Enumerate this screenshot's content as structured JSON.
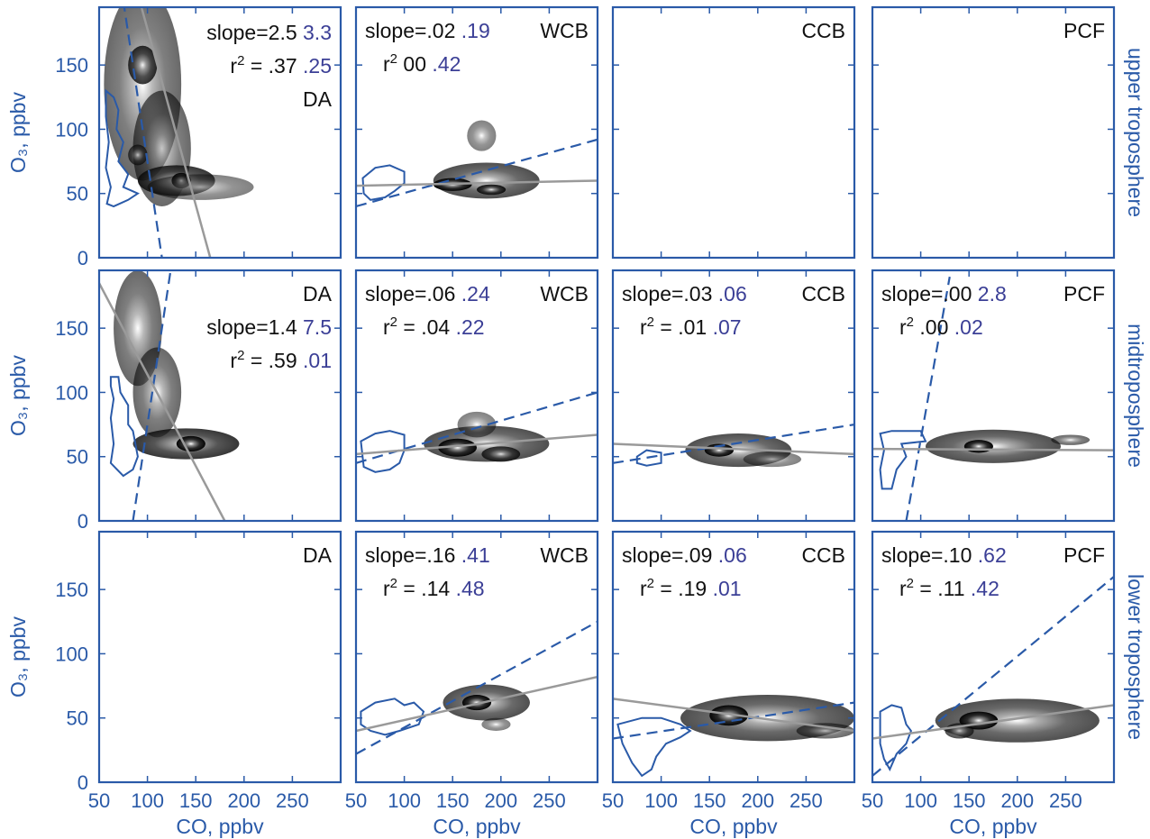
{
  "colors": {
    "axis": "#2a5aa8",
    "black_text": "#111111",
    "purple_text": "#3b3f96",
    "fit_line": "#9a9a9a",
    "contour": "#2a5aa8"
  },
  "chart_data": {
    "type": "scatter",
    "xlabel": "CO, ppbv",
    "ylabel": "O₃, ppbv",
    "xlim": [
      50,
      300
    ],
    "ylim": [
      0,
      195
    ],
    "xticks": [
      50,
      100,
      150,
      200,
      250
    ],
    "yticks": [
      0,
      50,
      100,
      150
    ],
    "row_labels": [
      "upper troposphere",
      "midtroposphere",
      "lower troposphere"
    ],
    "panels": [
      {
        "row": 0,
        "col": 0,
        "tag": "DA",
        "slope": [
          "slope=2.5",
          "3.3"
        ],
        "r2": [
          "= .37",
          ".25"
        ],
        "cloud": [
          [
            95,
            135,
            40,
            75,
            0.6
          ],
          [
            115,
            85,
            30,
            45,
            0.6
          ],
          [
            130,
            60,
            40,
            12,
            0.8
          ],
          [
            135,
            60,
            10,
            6,
            1.0
          ],
          [
            155,
            55,
            55,
            10,
            0.5
          ],
          [
            95,
            150,
            15,
            15,
            0.8
          ],
          [
            90,
            80,
            10,
            8,
            0.7
          ]
        ],
        "fit": [
          [
            50,
            315
          ],
          [
            165,
            0
          ]
        ],
        "dash": [
          [
            75,
            200
          ],
          [
            115,
            0
          ]
        ],
        "contour": [
          [
            57,
            130
          ],
          [
            65,
            125
          ],
          [
            70,
            115
          ],
          [
            68,
            100
          ],
          [
            75,
            90
          ],
          [
            70,
            75
          ],
          [
            80,
            65
          ],
          [
            75,
            55
          ],
          [
            90,
            50
          ],
          [
            80,
            45
          ],
          [
            65,
            40
          ],
          [
            58,
            42
          ],
          [
            62,
            55
          ],
          [
            57,
            70
          ],
          [
            60,
            90
          ],
          [
            57,
            110
          ]
        ]
      },
      {
        "row": 0,
        "col": 1,
        "tag": "WCB",
        "slope": [
          "slope=.02",
          ".19"
        ],
        "r2": [
          "00",
          ".42"
        ],
        "cloud": [
          [
            185,
            60,
            55,
            14,
            0.7
          ],
          [
            150,
            57,
            20,
            5,
            1.0
          ],
          [
            190,
            53,
            15,
            4,
            0.9
          ],
          [
            180,
            95,
            15,
            12,
            0.5
          ]
        ],
        "fit": [
          [
            50,
            56
          ],
          [
            300,
            60
          ]
        ],
        "dash": [
          [
            50,
            40
          ],
          [
            300,
            92
          ]
        ],
        "contour": [
          [
            57,
            62
          ],
          [
            70,
            70
          ],
          [
            85,
            72
          ],
          [
            100,
            67
          ],
          [
            100,
            58
          ],
          [
            90,
            52
          ],
          [
            80,
            47
          ],
          [
            65,
            45
          ],
          [
            58,
            50
          ]
        ]
      },
      {
        "row": 0,
        "col": 2,
        "tag": "CCB",
        "slope": null,
        "r2": null,
        "cloud": [],
        "fit": null,
        "dash": null,
        "contour": null
      },
      {
        "row": 0,
        "col": 3,
        "tag": "PCF",
        "slope": null,
        "r2": null,
        "cloud": [],
        "fit": null,
        "dash": null,
        "contour": null
      },
      {
        "row": 1,
        "col": 0,
        "tag": "DA",
        "slope": [
          "slope=1.4",
          "7.5"
        ],
        "r2": [
          "= .59",
          ".01"
        ],
        "cloud": [
          [
            90,
            150,
            25,
            45,
            0.6
          ],
          [
            110,
            100,
            25,
            35,
            0.6
          ],
          [
            140,
            60,
            55,
            12,
            0.8
          ],
          [
            145,
            60,
            15,
            6,
            1.0
          ]
        ],
        "fit": [
          [
            50,
            185
          ],
          [
            180,
            0
          ]
        ],
        "dash": [
          [
            85,
            0
          ],
          [
            125,
            200
          ]
        ],
        "contour": [
          [
            62,
            112
          ],
          [
            70,
            112
          ],
          [
            72,
            100
          ],
          [
            80,
            90
          ],
          [
            80,
            75
          ],
          [
            85,
            70
          ],
          [
            90,
            50
          ],
          [
            85,
            40
          ],
          [
            75,
            35
          ],
          [
            62,
            45
          ],
          [
            65,
            60
          ],
          [
            62,
            80
          ],
          [
            65,
            95
          ],
          [
            62,
            105
          ]
        ]
      },
      {
        "row": 1,
        "col": 1,
        "tag": "WCB",
        "slope": [
          "slope=.06",
          ".24"
        ],
        "r2": [
          "= .04",
          ".22"
        ],
        "cloud": [
          [
            185,
            60,
            65,
            14,
            0.7
          ],
          [
            155,
            57,
            20,
            7,
            1.0
          ],
          [
            200,
            52,
            20,
            6,
            0.8
          ],
          [
            175,
            75,
            20,
            10,
            0.5
          ]
        ],
        "fit": [
          [
            50,
            52
          ],
          [
            300,
            67
          ]
        ],
        "dash": [
          [
            50,
            45
          ],
          [
            300,
            100
          ]
        ],
        "contour": [
          [
            55,
            62
          ],
          [
            70,
            68
          ],
          [
            85,
            70
          ],
          [
            100,
            67
          ],
          [
            100,
            55
          ],
          [
            95,
            45
          ],
          [
            85,
            40
          ],
          [
            70,
            38
          ],
          [
            58,
            42
          ]
        ]
      },
      {
        "row": 1,
        "col": 2,
        "tag": "CCB",
        "slope": [
          "slope=.03",
          ".06"
        ],
        "r2": [
          "= .01",
          ".07"
        ],
        "cloud": [
          [
            180,
            55,
            55,
            13,
            0.7
          ],
          [
            160,
            55,
            15,
            5,
            1.0
          ],
          [
            215,
            48,
            30,
            6,
            0.5
          ]
        ],
        "fit": [
          [
            50,
            60
          ],
          [
            300,
            52
          ]
        ],
        "dash": [
          [
            50,
            45
          ],
          [
            300,
            75
          ]
        ],
        "contour": [
          [
            75,
            50
          ],
          [
            85,
            55
          ],
          [
            100,
            53
          ],
          [
            100,
            45
          ],
          [
            85,
            43
          ],
          [
            75,
            45
          ]
        ]
      },
      {
        "row": 1,
        "col": 3,
        "tag": "PCF",
        "slope": [
          "slope=.00",
          "2.8"
        ],
        "r2": [
          ".00",
          ".02"
        ],
        "cloud": [
          [
            175,
            58,
            70,
            13,
            0.7
          ],
          [
            160,
            58,
            15,
            5,
            1.0
          ],
          [
            255,
            63,
            20,
            4,
            0.6
          ]
        ],
        "fit": [
          [
            50,
            56
          ],
          [
            300,
            55
          ]
        ],
        "dash": [
          [
            85,
            0
          ],
          [
            130,
            190
          ]
        ],
        "contour": [
          [
            58,
            68
          ],
          [
            70,
            70
          ],
          [
            100,
            70
          ],
          [
            105,
            62
          ],
          [
            80,
            60
          ],
          [
            85,
            50
          ],
          [
            75,
            40
          ],
          [
            70,
            25
          ],
          [
            60,
            25
          ],
          [
            58,
            40
          ],
          [
            62,
            55
          ]
        ]
      },
      {
        "row": 2,
        "col": 0,
        "tag": "DA",
        "slope": null,
        "r2": null,
        "cloud": [],
        "fit": null,
        "dash": null,
        "contour": null
      },
      {
        "row": 2,
        "col": 1,
        "tag": "WCB",
        "slope": [
          "slope=.16",
          ".41"
        ],
        "r2": [
          "= .14",
          ".48"
        ],
        "cloud": [
          [
            185,
            62,
            45,
            14,
            0.7
          ],
          [
            175,
            62,
            15,
            6,
            1.0
          ],
          [
            195,
            45,
            15,
            5,
            0.5
          ]
        ],
        "fit": [
          [
            50,
            40
          ],
          [
            300,
            82
          ]
        ],
        "dash": [
          [
            50,
            22
          ],
          [
            300,
            125
          ]
        ],
        "contour": [
          [
            55,
            55
          ],
          [
            70,
            62
          ],
          [
            90,
            65
          ],
          [
            100,
            60
          ],
          [
            110,
            62
          ],
          [
            120,
            55
          ],
          [
            115,
            45
          ],
          [
            95,
            40
          ],
          [
            80,
            37
          ],
          [
            65,
            40
          ],
          [
            55,
            45
          ]
        ]
      },
      {
        "row": 2,
        "col": 2,
        "tag": "CCB",
        "slope": [
          "slope=.09",
          ".06"
        ],
        "r2": [
          "= .19",
          ".01"
        ],
        "cloud": [
          [
            210,
            50,
            90,
            18,
            0.7
          ],
          [
            170,
            52,
            20,
            8,
            1.0
          ],
          [
            270,
            40,
            30,
            6,
            0.6
          ]
        ],
        "fit": [
          [
            50,
            65
          ],
          [
            300,
            40
          ]
        ],
        "dash": [
          [
            50,
            34
          ],
          [
            300,
            62
          ]
        ],
        "contour": [
          [
            55,
            45
          ],
          [
            80,
            50
          ],
          [
            100,
            50
          ],
          [
            120,
            45
          ],
          [
            130,
            40
          ],
          [
            120,
            35
          ],
          [
            105,
            30
          ],
          [
            95,
            20
          ],
          [
            90,
            10
          ],
          [
            80,
            5
          ],
          [
            70,
            15
          ],
          [
            60,
            30
          ]
        ]
      },
      {
        "row": 2,
        "col": 3,
        "tag": "PCF",
        "slope": [
          "slope=.10",
          ".62"
        ],
        "r2": [
          "= .11",
          ".42"
        ],
        "cloud": [
          [
            200,
            48,
            85,
            17,
            0.7
          ],
          [
            160,
            48,
            20,
            7,
            1.0
          ],
          [
            140,
            40,
            15,
            6,
            0.7
          ]
        ],
        "fit": [
          [
            50,
            34
          ],
          [
            300,
            60
          ]
        ],
        "dash": [
          [
            50,
            5
          ],
          [
            300,
            160
          ]
        ],
        "contour": [
          [
            58,
            55
          ],
          [
            70,
            60
          ],
          [
            80,
            58
          ],
          [
            85,
            45
          ],
          [
            90,
            40
          ],
          [
            85,
            30
          ],
          [
            75,
            22
          ],
          [
            68,
            10
          ],
          [
            62,
            18
          ],
          [
            58,
            30
          ]
        ]
      }
    ]
  }
}
